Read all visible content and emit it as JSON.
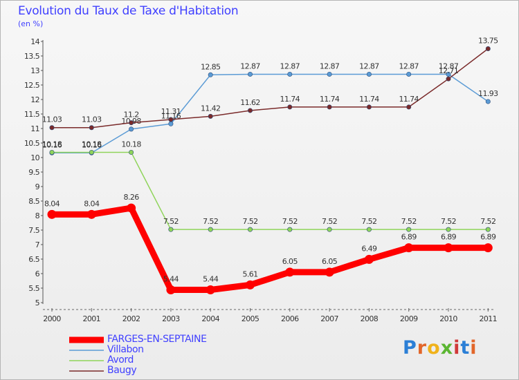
{
  "title": "Evolution du Taux de Taxe d'Habitation",
  "subtitle": "(en %)",
  "brand": "Proxiti",
  "brand_letters": [
    "P",
    "r",
    "o",
    "x",
    "i",
    "t",
    "i"
  ],
  "chart_data": {
    "type": "line",
    "title": "Evolution du Taux de Taxe d'Habitation",
    "ylabel": "(en %)",
    "xlabel": "",
    "ylim": [
      5,
      14
    ],
    "grid": false,
    "legend_placement": "bottom-left",
    "categories": [
      "2000",
      "2001",
      "2002",
      "2003",
      "2004",
      "2005",
      "2006",
      "2007",
      "2008",
      "2009",
      "2010",
      "2011"
    ],
    "y_ticks": [
      "5",
      "5.5",
      "6",
      "6.5",
      "7",
      "7.5",
      "8",
      "8.5",
      "9",
      "9.5",
      "10",
      "10.5",
      "11",
      "11.5",
      "12",
      "12.5",
      "13",
      "13.5",
      "14"
    ],
    "series": [
      {
        "name": "FARGES-EN-SEPTAINE",
        "color": "#ff0000",
        "emphasis": true,
        "values": [
          8.04,
          8.04,
          8.26,
          5.44,
          5.44,
          5.61,
          6.05,
          6.05,
          6.49,
          6.89,
          6.89,
          6.89
        ],
        "labels": [
          "8.04",
          "8.04",
          "8.26",
          "5.44",
          "5.44",
          "5.61",
          "6.05",
          "6.05",
          "6.49",
          "6.89",
          "6.89",
          "6.89"
        ]
      },
      {
        "name": "Villabon",
        "color": "#5b9bd5",
        "values": [
          10.16,
          10.16,
          10.98,
          11.16,
          12.85,
          12.87,
          12.87,
          12.87,
          12.87,
          12.87,
          12.87,
          11.93
        ],
        "labels": [
          "10.16",
          "10.16",
          "10.98",
          "11.16",
          "12.85",
          "12.87",
          "12.87",
          "12.87",
          "12.87",
          "12.87",
          "12.87",
          "11.93"
        ]
      },
      {
        "name": "Avord",
        "color": "#8fd45a",
        "values": [
          10.18,
          10.18,
          10.18,
          7.52,
          7.52,
          7.52,
          7.52,
          7.52,
          7.52,
          7.52,
          7.52,
          7.52
        ],
        "labels": [
          "10.18",
          "10.18",
          "10.18",
          "7.52",
          "7.52",
          "7.52",
          "7.52",
          "7.52",
          "7.52",
          "7.52",
          "7.52",
          "7.52"
        ]
      },
      {
        "name": "Baugy",
        "color": "#7a2a2a",
        "values": [
          11.03,
          11.03,
          11.2,
          11.31,
          11.42,
          11.62,
          11.74,
          11.74,
          11.74,
          11.74,
          12.71,
          13.75
        ],
        "labels": [
          "11.03",
          "11.03",
          "11.2",
          "11.31",
          "11.42",
          "11.62",
          "11.74",
          "11.74",
          "11.74",
          "11.74",
          "12.71",
          "13.75"
        ]
      }
    ]
  }
}
